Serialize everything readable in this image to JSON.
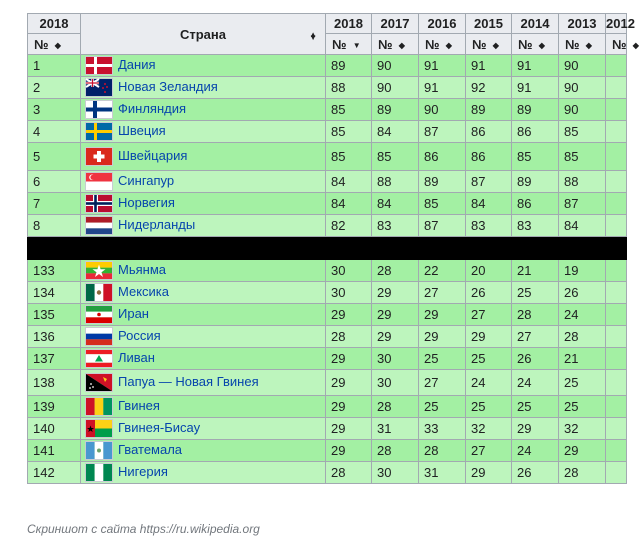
{
  "header": {
    "year_top": "2018",
    "no_label": "№",
    "country_label": "Страна",
    "years": [
      "2018",
      "2017",
      "2016",
      "2015",
      "2014",
      "2013",
      "2012"
    ]
  },
  "rows_top": [
    {
      "no": "1",
      "country": "Дания",
      "flag": "denmark",
      "v": [
        "89",
        "90",
        "91",
        "91",
        "91",
        "90",
        ""
      ]
    },
    {
      "no": "2",
      "country": "Новая Зеландия",
      "flag": "new-zealand",
      "v": [
        "88",
        "90",
        "91",
        "92",
        "91",
        "90",
        ""
      ]
    },
    {
      "no": "3",
      "country": "Финляндия",
      "flag": "finland",
      "v": [
        "85",
        "89",
        "90",
        "89",
        "89",
        "90",
        ""
      ]
    },
    {
      "no": "4",
      "country": "Швеция",
      "flag": "sweden",
      "v": [
        "85",
        "84",
        "87",
        "86",
        "86",
        "85",
        ""
      ]
    },
    {
      "no": "5",
      "country": "Швейцария",
      "flag": "switzerland",
      "v": [
        "85",
        "85",
        "86",
        "86",
        "85",
        "85",
        ""
      ]
    },
    {
      "no": "6",
      "country": "Сингапур",
      "flag": "singapore",
      "v": [
        "84",
        "88",
        "89",
        "87",
        "89",
        "88",
        ""
      ]
    },
    {
      "no": "7",
      "country": "Норвегия",
      "flag": "norway",
      "v": [
        "84",
        "84",
        "85",
        "84",
        "86",
        "87",
        ""
      ]
    },
    {
      "no": "8",
      "country": "Нидерланды",
      "flag": "netherlands",
      "v": [
        "82",
        "83",
        "87",
        "83",
        "83",
        "84",
        ""
      ]
    }
  ],
  "rows_bottom": [
    {
      "no": "133",
      "country": "Мьянма",
      "flag": "myanmar",
      "v": [
        "30",
        "28",
        "22",
        "20",
        "21",
        "19",
        ""
      ]
    },
    {
      "no": "134",
      "country": "Мексика",
      "flag": "mexico",
      "v": [
        "30",
        "29",
        "27",
        "26",
        "25",
        "26",
        ""
      ]
    },
    {
      "no": "135",
      "country": "Иран",
      "flag": "iran",
      "v": [
        "29",
        "29",
        "29",
        "27",
        "28",
        "24",
        ""
      ]
    },
    {
      "no": "136",
      "country": "Россия",
      "flag": "russia",
      "v": [
        "28",
        "29",
        "29",
        "29",
        "27",
        "28",
        ""
      ]
    },
    {
      "no": "137",
      "country": "Ливан",
      "flag": "lebanon",
      "v": [
        "29",
        "30",
        "25",
        "25",
        "26",
        "21",
        ""
      ]
    },
    {
      "no": "138",
      "country": "Папуа — Новая Гвинея",
      "flag": "papua-new-guinea",
      "v": [
        "29",
        "30",
        "27",
        "24",
        "24",
        "25",
        ""
      ]
    },
    {
      "no": "139",
      "country": "Гвинея",
      "flag": "guinea",
      "v": [
        "29",
        "28",
        "25",
        "25",
        "25",
        "25",
        ""
      ]
    },
    {
      "no": "140",
      "country": "Гвинея-Бисау",
      "flag": "guinea-bissau",
      "v": [
        "29",
        "31",
        "33",
        "32",
        "29",
        "32",
        ""
      ]
    },
    {
      "no": "141",
      "country": "Гватемала",
      "flag": "guatemala",
      "v": [
        "29",
        "28",
        "28",
        "27",
        "24",
        "29",
        ""
      ]
    },
    {
      "no": "142",
      "country": "Нигерия",
      "flag": "nigeria",
      "v": [
        "28",
        "30",
        "31",
        "29",
        "26",
        "28",
        ""
      ]
    }
  ],
  "caption": "Скриншот с сайта https://ru.wikipedia.org"
}
